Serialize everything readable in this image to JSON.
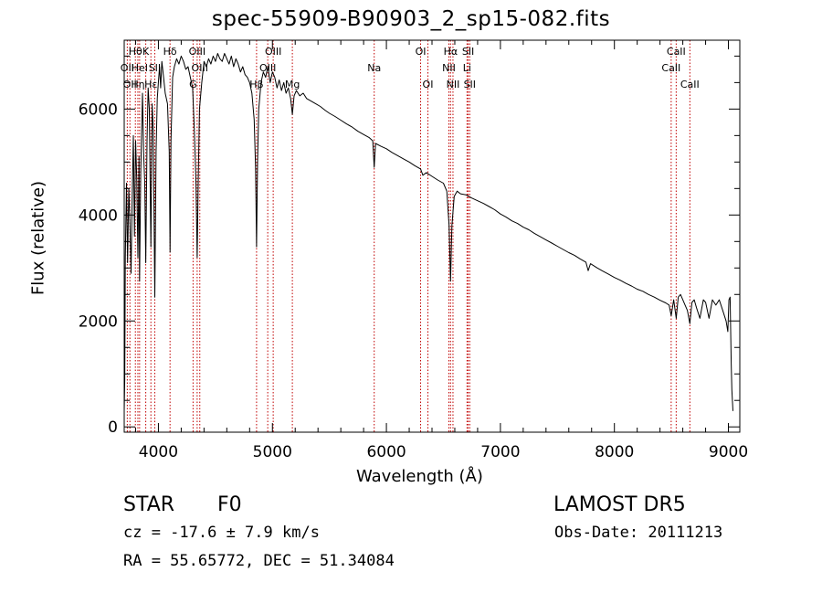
{
  "header": {
    "title": "spec-55909-B90903_2_sp15-082.fits"
  },
  "info": {
    "object_class": "STAR",
    "object_subclass": "F0",
    "survey": "LAMOST DR5",
    "redshift_text": "cz = -17.6 ± 7.9 km/s",
    "obs_date_text": "Obs-Date: 20111213",
    "coords_text": "RA =  55.65772, DEC =  51.34084"
  },
  "chart_data": {
    "type": "line",
    "title": "spec-55909-B90903_2_sp15-082.fits",
    "xlabel": "Wavelength (Å)",
    "ylabel": "Flux (relative)",
    "xlim": [
      3700,
      9100
    ],
    "ylim": [
      -100,
      7300
    ],
    "xticks": [
      4000,
      5000,
      6000,
      7000,
      8000,
      9000
    ],
    "yticks": [
      0,
      2000,
      4000,
      6000
    ],
    "grid": false,
    "legend": "none",
    "colors": {
      "spectrum": "#000000",
      "line_markers": "#c00000",
      "axes": "#000000"
    },
    "series": [
      {
        "values": [
          [
            3700,
            300
          ],
          [
            3705,
            900
          ],
          [
            3710,
            3200
          ],
          [
            3720,
            4600
          ],
          [
            3730,
            3100
          ],
          [
            3740,
            4500
          ],
          [
            3750,
            3900
          ],
          [
            3760,
            2900
          ],
          [
            3770,
            4300
          ],
          [
            3780,
            5500
          ],
          [
            3790,
            3600
          ],
          [
            3800,
            5400
          ],
          [
            3810,
            4700
          ],
          [
            3820,
            3200
          ],
          [
            3830,
            5100
          ],
          [
            3835,
            2750
          ],
          [
            3845,
            4800
          ],
          [
            3860,
            6300
          ],
          [
            3870,
            5200
          ],
          [
            3880,
            4600
          ],
          [
            3889,
            3100
          ],
          [
            3900,
            5400
          ],
          [
            3910,
            6400
          ],
          [
            3920,
            6000
          ],
          [
            3934,
            3400
          ],
          [
            3945,
            6100
          ],
          [
            3955,
            5600
          ],
          [
            3968,
            2450
          ],
          [
            3980,
            5200
          ],
          [
            3990,
            6200
          ],
          [
            4000,
            6500
          ],
          [
            4010,
            6800
          ],
          [
            4020,
            6400
          ],
          [
            4030,
            6900
          ],
          [
            4045,
            6600
          ],
          [
            4060,
            6300
          ],
          [
            4080,
            6100
          ],
          [
            4095,
            5200
          ],
          [
            4102,
            3300
          ],
          [
            4110,
            5400
          ],
          [
            4125,
            6600
          ],
          [
            4140,
            6800
          ],
          [
            4160,
            6950
          ],
          [
            4180,
            6850
          ],
          [
            4200,
            7000
          ],
          [
            4220,
            6900
          ],
          [
            4240,
            6750
          ],
          [
            4260,
            6800
          ],
          [
            4280,
            6600
          ],
          [
            4300,
            6400
          ],
          [
            4315,
            5600
          ],
          [
            4330,
            4600
          ],
          [
            4340,
            3200
          ],
          [
            4350,
            4700
          ],
          [
            4360,
            6000
          ],
          [
            4380,
            6500
          ],
          [
            4400,
            6900
          ],
          [
            4420,
            6800
          ],
          [
            4440,
            6950
          ],
          [
            4460,
            6850
          ],
          [
            4480,
            7000
          ],
          [
            4500,
            6900
          ],
          [
            4520,
            7050
          ],
          [
            4540,
            6950
          ],
          [
            4560,
            6900
          ],
          [
            4580,
            7050
          ],
          [
            4600,
            6950
          ],
          [
            4620,
            6850
          ],
          [
            4640,
            7000
          ],
          [
            4660,
            6800
          ],
          [
            4680,
            6950
          ],
          [
            4700,
            6850
          ],
          [
            4720,
            6700
          ],
          [
            4740,
            6800
          ],
          [
            4760,
            6650
          ],
          [
            4780,
            6600
          ],
          [
            4800,
            6500
          ],
          [
            4820,
            6300
          ],
          [
            4840,
            5800
          ],
          [
            4852,
            4900
          ],
          [
            4861,
            3400
          ],
          [
            4870,
            5000
          ],
          [
            4880,
            6000
          ],
          [
            4900,
            6500
          ],
          [
            4920,
            6700
          ],
          [
            4940,
            6600
          ],
          [
            4960,
            6800
          ],
          [
            4980,
            6500
          ],
          [
            5000,
            6700
          ],
          [
            5020,
            6600
          ],
          [
            5040,
            6400
          ],
          [
            5060,
            6550
          ],
          [
            5080,
            6350
          ],
          [
            5100,
            6500
          ],
          [
            5120,
            6300
          ],
          [
            5140,
            6400
          ],
          [
            5160,
            6200
          ],
          [
            5175,
            5900
          ],
          [
            5190,
            6250
          ],
          [
            5210,
            6350
          ],
          [
            5240,
            6250
          ],
          [
            5270,
            6300
          ],
          [
            5300,
            6200
          ],
          [
            5340,
            6150
          ],
          [
            5380,
            6100
          ],
          [
            5420,
            6050
          ],
          [
            5460,
            5980
          ],
          [
            5500,
            5920
          ],
          [
            5550,
            5860
          ],
          [
            5600,
            5790
          ],
          [
            5650,
            5720
          ],
          [
            5700,
            5660
          ],
          [
            5750,
            5580
          ],
          [
            5800,
            5520
          ],
          [
            5850,
            5460
          ],
          [
            5880,
            5400
          ],
          [
            5893,
            4900
          ],
          [
            5905,
            5350
          ],
          [
            5950,
            5300
          ],
          [
            6000,
            5250
          ],
          [
            6050,
            5180
          ],
          [
            6100,
            5120
          ],
          [
            6150,
            5060
          ],
          [
            6200,
            5000
          ],
          [
            6250,
            4930
          ],
          [
            6300,
            4870
          ],
          [
            6320,
            4750
          ],
          [
            6350,
            4800
          ],
          [
            6400,
            4730
          ],
          [
            6450,
            4660
          ],
          [
            6500,
            4600
          ],
          [
            6530,
            4450
          ],
          [
            6550,
            3800
          ],
          [
            6563,
            2750
          ],
          [
            6575,
            3800
          ],
          [
            6595,
            4350
          ],
          [
            6620,
            4450
          ],
          [
            6650,
            4400
          ],
          [
            6700,
            4380
          ],
          [
            6750,
            4320
          ],
          [
            6800,
            4270
          ],
          [
            6850,
            4220
          ],
          [
            6900,
            4160
          ],
          [
            6950,
            4100
          ],
          [
            7000,
            4020
          ],
          [
            7050,
            3960
          ],
          [
            7100,
            3890
          ],
          [
            7150,
            3840
          ],
          [
            7200,
            3770
          ],
          [
            7250,
            3720
          ],
          [
            7300,
            3650
          ],
          [
            7350,
            3590
          ],
          [
            7400,
            3530
          ],
          [
            7450,
            3470
          ],
          [
            7500,
            3410
          ],
          [
            7550,
            3350
          ],
          [
            7600,
            3290
          ],
          [
            7650,
            3240
          ],
          [
            7700,
            3170
          ],
          [
            7750,
            3110
          ],
          [
            7770,
            2950
          ],
          [
            7790,
            3080
          ],
          [
            7850,
            3000
          ],
          [
            7900,
            2940
          ],
          [
            7950,
            2880
          ],
          [
            8000,
            2820
          ],
          [
            8050,
            2770
          ],
          [
            8100,
            2710
          ],
          [
            8150,
            2660
          ],
          [
            8200,
            2600
          ],
          [
            8250,
            2560
          ],
          [
            8300,
            2500
          ],
          [
            8350,
            2450
          ],
          [
            8400,
            2390
          ],
          [
            8450,
            2340
          ],
          [
            8480,
            2300
          ],
          [
            8498,
            2100
          ],
          [
            8520,
            2400
          ],
          [
            8542,
            2050
          ],
          [
            8560,
            2450
          ],
          [
            8580,
            2500
          ],
          [
            8600,
            2400
          ],
          [
            8620,
            2300
          ],
          [
            8640,
            2200
          ],
          [
            8662,
            1950
          ],
          [
            8680,
            2350
          ],
          [
            8700,
            2400
          ],
          [
            8720,
            2250
          ],
          [
            8750,
            2050
          ],
          [
            8780,
            2400
          ],
          [
            8800,
            2350
          ],
          [
            8830,
            2050
          ],
          [
            8860,
            2400
          ],
          [
            8890,
            2300
          ],
          [
            8920,
            2400
          ],
          [
            8950,
            2200
          ],
          [
            8980,
            2000
          ],
          [
            8995,
            1800
          ],
          [
            9005,
            2400
          ],
          [
            9015,
            2450
          ],
          [
            9025,
            1200
          ],
          [
            9030,
            700
          ],
          [
            9040,
            300
          ]
        ]
      }
    ],
    "line_markers": [
      {
        "wavelength": 3727,
        "label": "OII",
        "row": 2
      },
      {
        "wavelength": 3750,
        "label": "OII",
        "row": 3
      },
      {
        "wavelength": 3798,
        "label": "Hθ",
        "row": 1
      },
      {
        "wavelength": 3820,
        "label": "Hη",
        "row": 3
      },
      {
        "wavelength": 3835,
        "label": "HeI",
        "row": 2
      },
      {
        "wavelength": 3889,
        "label": "K",
        "row": 1
      },
      {
        "wavelength": 3934,
        "label": "Hε",
        "row": 3
      },
      {
        "wavelength": 3968,
        "label": "SII",
        "row": 2
      },
      {
        "wavelength": 4102,
        "label": "Hδ",
        "row": 1
      },
      {
        "wavelength": 4304,
        "label": "G",
        "row": 3
      },
      {
        "wavelength": 4340,
        "label": "OIII",
        "row": 1
      },
      {
        "wavelength": 4363,
        "label": "OIII",
        "row": 2
      },
      {
        "wavelength": 4861,
        "label": "Hβ",
        "row": 3
      },
      {
        "wavelength": 4959,
        "label": "OIII",
        "row": 2
      },
      {
        "wavelength": 5007,
        "label": "OIII",
        "row": 1
      },
      {
        "wavelength": 5175,
        "label": "Mg",
        "row": 3
      },
      {
        "wavelength": 5893,
        "label": "Na",
        "row": 2
      },
      {
        "wavelength": 6300,
        "label": "OI",
        "row": 1
      },
      {
        "wavelength": 6364,
        "label": "OI",
        "row": 3
      },
      {
        "wavelength": 6548,
        "label": "NII",
        "row": 2
      },
      {
        "wavelength": 6563,
        "label": "Hα",
        "row": 1
      },
      {
        "wavelength": 6584,
        "label": "NII",
        "row": 3
      },
      {
        "wavelength": 6707,
        "label": "Li",
        "row": 2
      },
      {
        "wavelength": 6717,
        "label": "SII",
        "row": 1
      },
      {
        "wavelength": 6731,
        "label": "SII",
        "row": 3
      },
      {
        "wavelength": 8498,
        "label": "CaII",
        "row": 2
      },
      {
        "wavelength": 8542,
        "label": "CaII",
        "row": 1
      },
      {
        "wavelength": 8662,
        "label": "CaII",
        "row": 3
      }
    ]
  }
}
